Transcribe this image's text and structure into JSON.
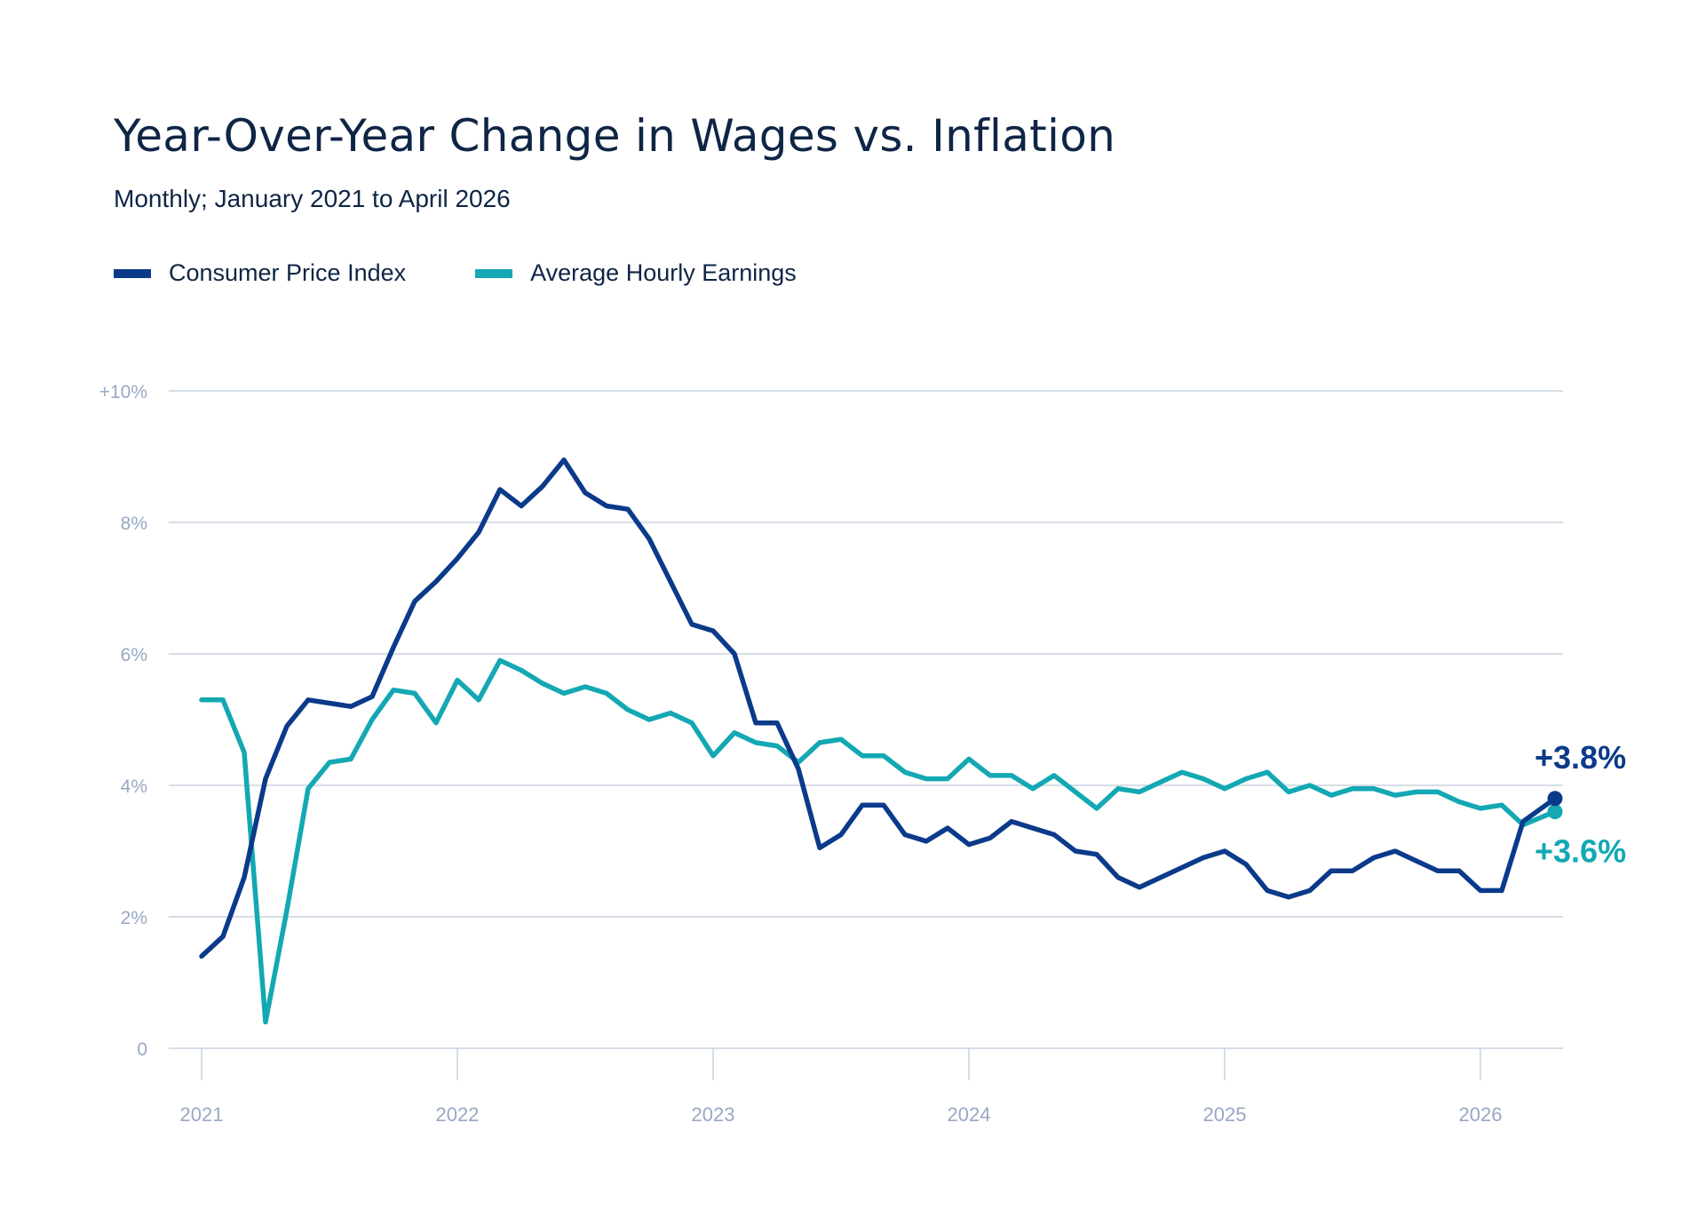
{
  "title": "Year-Over-Year Change in Wages vs. Inflation",
  "subtitle": "Monthly; January 2021 to April 2026",
  "colors": {
    "cpi": "#0b3a8a",
    "ahe": "#13a8b3",
    "grid": "#c9d3e1",
    "axis_text": "#98a8c4"
  },
  "chart_data": {
    "type": "line",
    "xlabel": "",
    "ylabel": "",
    "ylim": [
      0,
      10
    ],
    "xlim": [
      "2021-01",
      "2026-04"
    ],
    "y_ticks": [
      0,
      2,
      4,
      6,
      8,
      10
    ],
    "y_tick_labels": [
      "0",
      "2%",
      "4%",
      "6%",
      "8%",
      "+10%"
    ],
    "x_tick_labels": [
      "2021",
      "2022",
      "2023",
      "2024",
      "2025",
      "2026"
    ],
    "grid": true,
    "legend": "top-left",
    "series": [
      {
        "name": "Consumer Price Index",
        "color": "#0b3a8a",
        "end_label": "+3.8%",
        "values": [
          1.4,
          1.7,
          2.6,
          4.1,
          4.9,
          5.3,
          5.25,
          5.2,
          5.35,
          6.1,
          6.8,
          7.1,
          7.45,
          7.85,
          8.5,
          8.25,
          8.55,
          8.95,
          8.45,
          8.25,
          8.2,
          7.75,
          7.1,
          6.45,
          6.35,
          6.0,
          4.95,
          4.95,
          4.25,
          3.05,
          3.25,
          3.7,
          3.7,
          3.25,
          3.15,
          3.35,
          3.1,
          3.2,
          3.45,
          3.35,
          3.25,
          3.0,
          2.95,
          2.6,
          2.45,
          2.6,
          2.75,
          2.9,
          3.0,
          2.8,
          2.4,
          2.3,
          2.4,
          2.7,
          2.7,
          2.9,
          3.0,
          2.85,
          2.7,
          2.7,
          2.4,
          2.4,
          3.45,
          3.8
        ]
      },
      {
        "name": "Average Hourly Earnings",
        "color": "#13a8b3",
        "end_label": "+3.6%",
        "values": [
          5.3,
          5.3,
          4.5,
          0.4,
          2.1,
          3.95,
          4.35,
          4.4,
          5.0,
          5.45,
          5.4,
          4.95,
          5.6,
          5.3,
          5.9,
          5.75,
          5.55,
          5.4,
          5.5,
          5.4,
          5.15,
          5.0,
          5.1,
          4.95,
          4.45,
          4.8,
          4.65,
          4.6,
          4.35,
          4.65,
          4.7,
          4.45,
          4.45,
          4.2,
          4.1,
          4.1,
          4.4,
          4.15,
          4.15,
          3.95,
          4.15,
          3.9,
          3.65,
          3.95,
          3.9,
          4.05,
          4.2,
          4.1,
          3.95,
          4.1,
          4.2,
          3.9,
          4.0,
          3.85,
          3.95,
          3.95,
          3.85,
          3.9,
          3.9,
          3.75,
          3.65,
          3.7,
          3.4,
          3.6
        ]
      }
    ]
  }
}
